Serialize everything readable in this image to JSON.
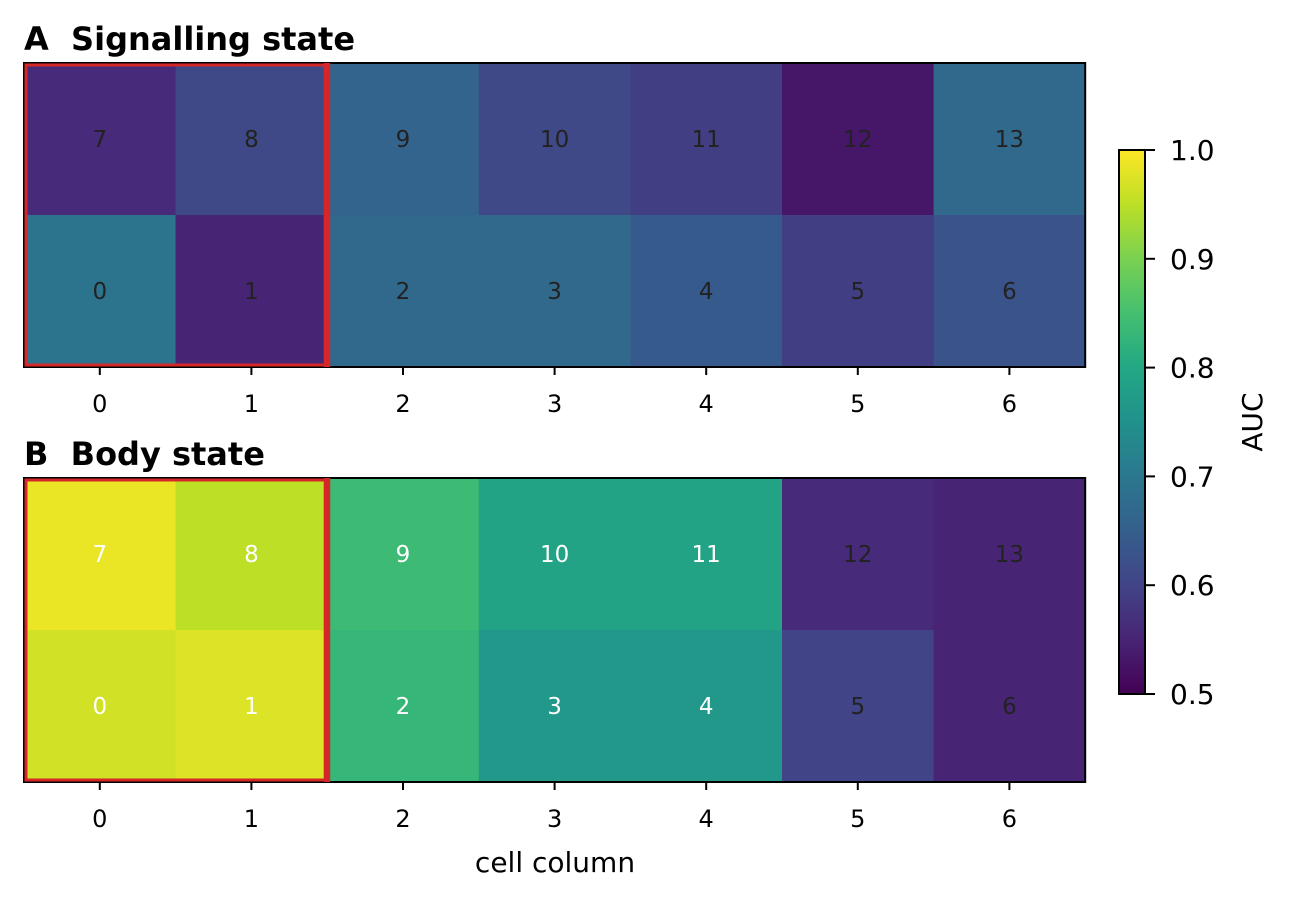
{
  "chart_data": {
    "type": "heatmap",
    "colormap": "viridis",
    "colorbar": {
      "label": "AUC",
      "vmin": 0.5,
      "vmax": 1.0,
      "ticks": [
        "0.5",
        "0.6",
        "0.7",
        "0.8",
        "0.9",
        "1.0"
      ]
    },
    "xlabel": "cell column",
    "x_ticks": [
      "0",
      "1",
      "2",
      "3",
      "4",
      "5",
      "6"
    ],
    "highlight": {
      "color": "#d62728",
      "columns": [
        0,
        1
      ]
    },
    "panels": [
      {
        "title": "A  Signalling state",
        "rows": [
          {
            "cell_labels": [
              "7",
              "8",
              "9",
              "10",
              "11",
              "12",
              "13"
            ],
            "values": [
              0.56,
              0.61,
              0.66,
              0.61,
              0.59,
              0.53,
              0.67
            ]
          },
          {
            "cell_labels": [
              "0",
              "1",
              "2",
              "3",
              "4",
              "5",
              "6"
            ],
            "values": [
              0.69,
              0.55,
              0.67,
              0.67,
              0.64,
              0.59,
              0.63
            ]
          }
        ]
      },
      {
        "title": "B  Body state",
        "rows": [
          {
            "cell_labels": [
              "7",
              "8",
              "9",
              "10",
              "11",
              "12",
              "13"
            ],
            "values": [
              0.985,
              0.95,
              0.84,
              0.79,
              0.79,
              0.56,
              0.55
            ]
          },
          {
            "cell_labels": [
              "0",
              "1",
              "2",
              "3",
              "4",
              "5",
              "6"
            ],
            "values": [
              0.965,
              0.975,
              0.83,
              0.765,
              0.765,
              0.6,
              0.55
            ]
          }
        ]
      }
    ]
  }
}
